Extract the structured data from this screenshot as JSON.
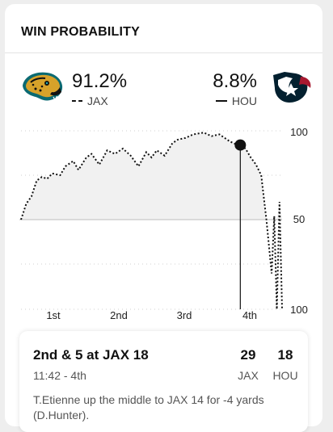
{
  "widget": {
    "title": "WIN PROBABILITY"
  },
  "teams": {
    "away": {
      "abbr": "JAX",
      "win_pct": "91.2%",
      "line_style": "dotted",
      "logo_icon": "jaguar-logo-icon",
      "brand_color": "#0b6a72"
    },
    "home": {
      "abbr": "HOU",
      "win_pct": "8.8%",
      "line_style": "solid",
      "logo_icon": "texans-bull-logo-icon",
      "brand_color": "#03202f"
    }
  },
  "legend": {
    "away_marker": "--",
    "home_marker": "—"
  },
  "chart_data": {
    "type": "line",
    "title": "",
    "xlabel": "",
    "ylabel": "",
    "x_ticks": [
      "1st",
      "2nd",
      "3rd",
      "4th"
    ],
    "y_ticks": [
      "100",
      "50",
      "100"
    ],
    "ylim": [
      -100,
      100
    ],
    "note_y": "Positive values = JAX win probability, negative = HOU win probability; 50 midline",
    "grid": true,
    "series": [
      {
        "line_style": "dotted",
        "x": [
          0,
          0.02,
          0.04,
          0.06,
          0.08,
          0.1,
          0.12,
          0.15,
          0.17,
          0.2,
          0.22,
          0.25,
          0.27,
          0.3,
          0.33,
          0.36,
          0.39,
          0.42,
          0.45,
          0.48,
          0.5,
          0.52,
          0.55,
          0.58,
          0.6,
          0.63,
          0.66,
          0.7,
          0.73,
          0.76,
          0.78,
          0.8,
          0.83,
          0.86,
          0.88,
          0.9,
          0.92,
          0.94,
          0.96,
          0.97,
          0.98,
          0.99,
          1.0
        ],
        "values": [
          0,
          18,
          26,
          44,
          48,
          46,
          52,
          50,
          60,
          66,
          56,
          70,
          74,
          62,
          78,
          74,
          80,
          72,
          60,
          76,
          70,
          78,
          72,
          86,
          90,
          92,
          96,
          98,
          94,
          96,
          92,
          88,
          84,
          80,
          70,
          62,
          50,
          0,
          -60,
          4,
          -100,
          20,
          -100
        ]
      }
    ],
    "current_marker": {
      "x": 0.84,
      "value": 84
    }
  },
  "play": {
    "situation": "2nd & 5 at JAX 18",
    "clock": "11:42 - 4th",
    "away_score": "29",
    "home_score": "18",
    "away_abbr": "JAX",
    "home_abbr": "HOU",
    "description": "T.Etienne up the middle to JAX 14 for -4 yards (D.Hunter)."
  }
}
